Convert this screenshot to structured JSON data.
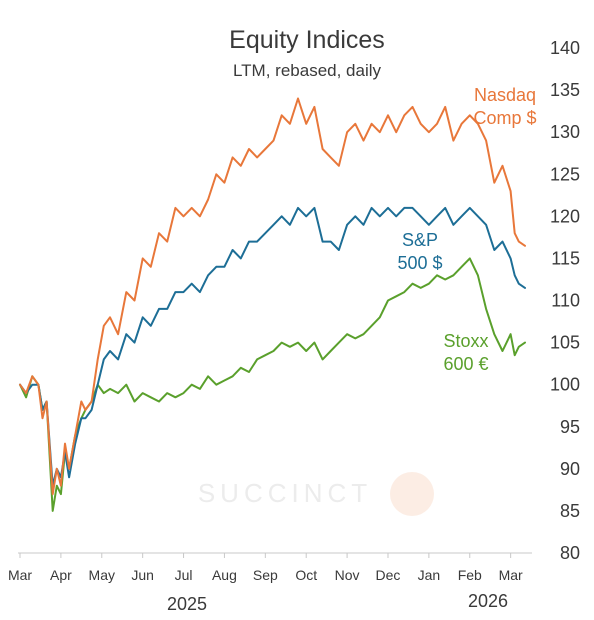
{
  "chart_data": {
    "type": "line",
    "title": "Equity Indices",
    "subtitle": "LTM, rebased, daily",
    "ylim": [
      80,
      140
    ],
    "yticks": [
      80,
      85,
      90,
      95,
      100,
      105,
      110,
      115,
      120,
      125,
      130,
      135,
      140
    ],
    "xlim": [
      0,
      12.4
    ],
    "xtick_labels": [
      "Mar",
      "Apr",
      "May",
      "Jun",
      "Jul",
      "Aug",
      "Sep",
      "Oct",
      "Nov",
      "Dec",
      "Jan",
      "Feb",
      "Mar"
    ],
    "year_labels": [
      "2025",
      "2026"
    ],
    "watermark": "SUCCINCT",
    "series": [
      {
        "name": "Nasdaq Comp $",
        "label_lines": [
          "Nasdaq",
          "Comp $"
        ],
        "color": "#e8773a",
        "x": [
          0,
          0.15,
          0.3,
          0.45,
          0.55,
          0.65,
          0.8,
          0.9,
          1.0,
          1.1,
          1.2,
          1.35,
          1.5,
          1.6,
          1.75,
          1.9,
          2.05,
          2.2,
          2.4,
          2.6,
          2.8,
          3.0,
          3.2,
          3.4,
          3.6,
          3.8,
          4.0,
          4.2,
          4.4,
          4.6,
          4.8,
          5.0,
          5.2,
          5.4,
          5.6,
          5.8,
          6.0,
          6.2,
          6.4,
          6.6,
          6.8,
          7.0,
          7.2,
          7.4,
          7.6,
          7.8,
          8.0,
          8.2,
          8.4,
          8.6,
          8.8,
          9.0,
          9.2,
          9.4,
          9.6,
          9.8,
          10.0,
          10.2,
          10.4,
          10.6,
          10.8,
          11.0,
          11.2,
          11.4,
          11.6,
          11.8,
          12.0,
          12.1,
          12.2,
          12.35
        ],
        "y": [
          100,
          99,
          101,
          100,
          96,
          98,
          87,
          90,
          88,
          93,
          90,
          94,
          98,
          97,
          98,
          103,
          107,
          108,
          106,
          111,
          110,
          115,
          114,
          118,
          117,
          121,
          120,
          121,
          120,
          122,
          125,
          124,
          127,
          126,
          128,
          127,
          128,
          129,
          132,
          131,
          134,
          131,
          133,
          128,
          127,
          126,
          130,
          131,
          129,
          131,
          130,
          132,
          130,
          132,
          133,
          131,
          130,
          131,
          133,
          129,
          131,
          132,
          131,
          129,
          124,
          126,
          123,
          118,
          117,
          116.5
        ]
      },
      {
        "name": "S&P 500 $",
        "label_lines": [
          "S&P",
          "500 $"
        ],
        "color": "#1d6e96",
        "x": [
          0,
          0.15,
          0.3,
          0.45,
          0.55,
          0.65,
          0.8,
          0.9,
          1.0,
          1.1,
          1.2,
          1.35,
          1.5,
          1.6,
          1.75,
          1.9,
          2.05,
          2.2,
          2.4,
          2.6,
          2.8,
          3.0,
          3.2,
          3.4,
          3.6,
          3.8,
          4.0,
          4.2,
          4.4,
          4.6,
          4.8,
          5.0,
          5.2,
          5.4,
          5.6,
          5.8,
          6.0,
          6.2,
          6.4,
          6.6,
          6.8,
          7.0,
          7.2,
          7.4,
          7.6,
          7.8,
          8.0,
          8.2,
          8.4,
          8.6,
          8.8,
          9.0,
          9.2,
          9.4,
          9.6,
          9.8,
          10.0,
          10.2,
          10.4,
          10.6,
          10.8,
          11.0,
          11.2,
          11.4,
          11.6,
          11.8,
          12.0,
          12.1,
          12.2,
          12.35
        ],
        "y": [
          100,
          99,
          100,
          100,
          97,
          98,
          88,
          90,
          89,
          92,
          89,
          93,
          96,
          96,
          97,
          100,
          103,
          104,
          103,
          106,
          105,
          108,
          107,
          109,
          109,
          111,
          111,
          112,
          111,
          113,
          114,
          114,
          116,
          115,
          117,
          117,
          118,
          119,
          120,
          119,
          121,
          120,
          121,
          117,
          117,
          116,
          119,
          120,
          119,
          121,
          120,
          121,
          120,
          121,
          121,
          120,
          119,
          120,
          121,
          119,
          120,
          121,
          120,
          119,
          116,
          117,
          115,
          113,
          112,
          111.5
        ]
      },
      {
        "name": "Stoxx 600 €",
        "label_lines": [
          "Stoxx",
          "600 €"
        ],
        "color": "#5aa02c",
        "x": [
          0,
          0.15,
          0.3,
          0.45,
          0.55,
          0.65,
          0.8,
          0.9,
          1.0,
          1.1,
          1.2,
          1.35,
          1.5,
          1.6,
          1.75,
          1.9,
          2.05,
          2.2,
          2.4,
          2.6,
          2.8,
          3.0,
          3.2,
          3.4,
          3.6,
          3.8,
          4.0,
          4.2,
          4.4,
          4.6,
          4.8,
          5.0,
          5.2,
          5.4,
          5.6,
          5.8,
          6.0,
          6.2,
          6.4,
          6.6,
          6.8,
          7.0,
          7.2,
          7.4,
          7.6,
          7.8,
          8.0,
          8.2,
          8.4,
          8.6,
          8.8,
          9.0,
          9.2,
          9.4,
          9.6,
          9.8,
          10.0,
          10.2,
          10.4,
          10.6,
          10.8,
          11.0,
          11.2,
          11.4,
          11.6,
          11.8,
          12.0,
          12.1,
          12.2,
          12.35
        ],
        "y": [
          100,
          98.5,
          101,
          100,
          97,
          98,
          85,
          88,
          87,
          92,
          90,
          94,
          96,
          97,
          98,
          100,
          99,
          99.5,
          99,
          100,
          98,
          99,
          98.5,
          98,
          99,
          98.5,
          99,
          100,
          99.5,
          101,
          100,
          100.5,
          101,
          102,
          101.5,
          103,
          103.5,
          104,
          105,
          104.5,
          105,
          104,
          105,
          103,
          104,
          105,
          106,
          105.5,
          106,
          107,
          108,
          110,
          110.5,
          111,
          112,
          111.5,
          112,
          113,
          112.5,
          113,
          114,
          115,
          113,
          109,
          106,
          104,
          106,
          103.5,
          104.5,
          105
        ]
      }
    ]
  }
}
